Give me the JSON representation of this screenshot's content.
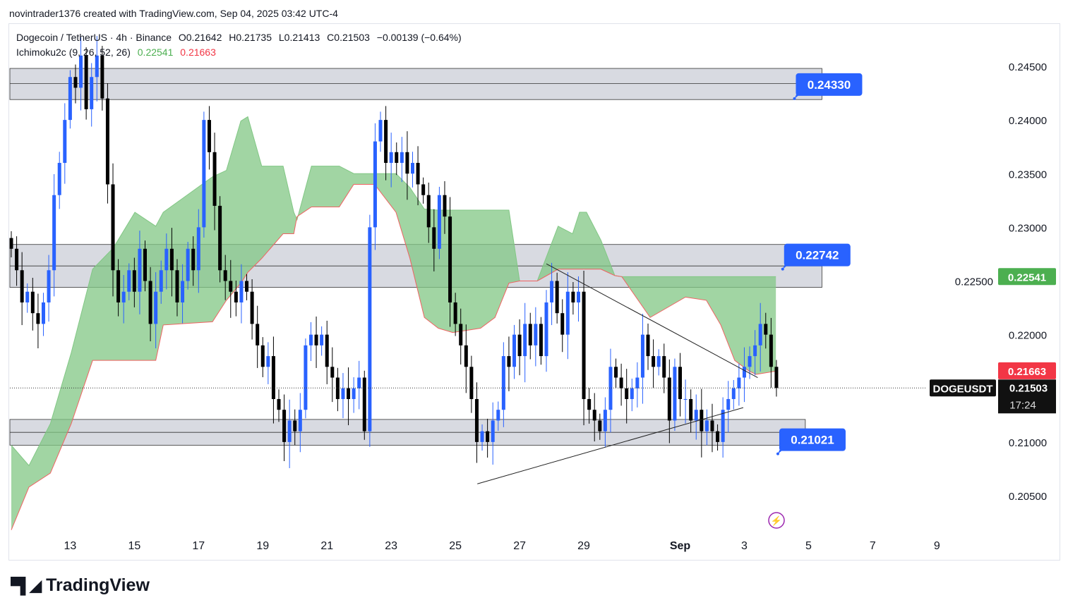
{
  "credit": "novintrader1376 created with TradingView.com, Sep 04, 2025 03:42 UTC-4",
  "legend": {
    "symbol": "Dogecoin / TetherUS · 4h · Binance",
    "open": "O0.21642",
    "high": "H0.21735",
    "low": "L0.21413",
    "close": "C0.21503",
    "change": "−0.00139 (−0.64%)",
    "indicator": "Ichimoku2c (9, 26, 52, 26)",
    "ind_val1": "0.22541",
    "ind_val2": "0.21663"
  },
  "logo": "TradingView",
  "colors": {
    "up": "#2962ff",
    "down": "#000000",
    "cloud": "#81c784",
    "cloud_edge": "#f06262",
    "zone": "#d1d4dc",
    "callout": "#2962ff",
    "green_label": "#4caf50",
    "red_label": "#f23645"
  },
  "chart_data": {
    "type": "candlestick",
    "symbol": "DOGEUSDT",
    "timeframe": "4h",
    "ylim": [
      0.2015,
      0.2488
    ],
    "y_ticks": [
      "0.24500",
      "0.24000",
      "0.23500",
      "0.23000",
      "0.22500",
      "0.22000",
      "0.21000",
      "0.20500"
    ],
    "x_ticks": [
      {
        "label": "13",
        "bar": 11
      },
      {
        "label": "15",
        "bar": 23
      },
      {
        "label": "17",
        "bar": 35
      },
      {
        "label": "19",
        "bar": 47
      },
      {
        "label": "21",
        "bar": 59
      },
      {
        "label": "23",
        "bar": 71
      },
      {
        "label": "25",
        "bar": 83
      },
      {
        "label": "27",
        "bar": 95
      },
      {
        "label": "29",
        "bar": 107
      },
      {
        "label": "Sep",
        "bar": 125
      },
      {
        "label": "3",
        "bar": 137
      },
      {
        "label": "5",
        "bar": 149
      },
      {
        "label": "7",
        "bar": 161
      },
      {
        "label": "9",
        "bar": 173
      }
    ],
    "closes": [
      0.228,
      0.226,
      0.223,
      0.224,
      0.222,
      0.221,
      0.223,
      0.226,
      0.233,
      0.236,
      0.24,
      0.244,
      0.243,
      0.246,
      0.241,
      0.244,
      0.246,
      0.242,
      0.234,
      0.226,
      0.223,
      0.224,
      0.226,
      0.224,
      0.228,
      0.225,
      0.221,
      0.224,
      0.226,
      0.228,
      0.226,
      0.223,
      0.225,
      0.228,
      0.226,
      0.23,
      0.24,
      0.237,
      0.232,
      0.226,
      0.225,
      0.224,
      0.223,
      0.225,
      0.224,
      0.221,
      0.219,
      0.217,
      0.218,
      0.214,
      0.213,
      0.21,
      0.212,
      0.211,
      0.213,
      0.219,
      0.22,
      0.219,
      0.22,
      0.217,
      0.216,
      0.214,
      0.215,
      0.214,
      0.215,
      0.216,
      0.211,
      0.23,
      0.238,
      0.24,
      0.236,
      0.237,
      0.236,
      0.237,
      0.235,
      0.236,
      0.234,
      0.233,
      0.23,
      0.228,
      0.233,
      0.231,
      0.223,
      0.221,
      0.219,
      0.217,
      0.214,
      0.21,
      0.211,
      0.21,
      0.212,
      0.213,
      0.218,
      0.217,
      0.22,
      0.218,
      0.221,
      0.219,
      0.221,
      0.218,
      0.223,
      0.225,
      0.222,
      0.22,
      0.224,
      0.223,
      0.224,
      0.214,
      0.213,
      0.212,
      0.211,
      0.213,
      0.217,
      0.216,
      0.215,
      0.214,
      0.215,
      0.216,
      0.22,
      0.218,
      0.217,
      0.218,
      0.216,
      0.212,
      0.217,
      0.214,
      0.214,
      0.212,
      0.213,
      0.211,
      0.212,
      0.211,
      0.21,
      0.213,
      0.214,
      0.215,
      0.216,
      0.217,
      0.218,
      0.219,
      0.221,
      0.22,
      0.217,
      0.21503
    ],
    "first_open": 0.229,
    "cloud": {
      "bars": [
        0,
        3.3,
        7.3,
        11.2,
        15.2,
        19.1,
        23.1,
        27,
        28.4,
        37.6,
        40.2,
        42.9,
        44.2,
        46.8,
        50.8,
        52.8,
        53.4,
        56.1,
        61.3,
        64,
        67.9,
        71.9,
        74.5,
        77.2,
        79.8,
        82.5,
        87.7,
        90.4,
        93,
        95,
        98.3,
        102.2,
        104.9,
        106.2,
        107.5,
        110.2,
        112.8,
        114.1,
        119.4,
        126,
        129.9,
        132.6,
        135.2,
        137.9,
        139.2,
        142.9
      ],
      "span_a": [
        0.2097,
        0.2078,
        0.2117,
        0.2183,
        0.2261,
        0.2281,
        0.2314,
        0.2301,
        0.2314,
        0.2347,
        0.2353,
        0.2399,
        0.2403,
        0.2357,
        0.2357,
        0.2314,
        0.2307,
        0.2357,
        0.2357,
        0.235,
        0.235,
        0.235,
        0.2337,
        0.2317,
        0.2316,
        0.2316,
        0.2316,
        0.2316,
        0.2316,
        0.225,
        0.225,
        0.2301,
        0.2294,
        0.2314,
        0.2314,
        0.2288,
        0.2255,
        0.2254,
        0.2254,
        0.2254,
        0.2254,
        0.2254,
        0.2254,
        0.2254,
        0.2254,
        0.2254
      ],
      "span_b": [
        0.2018,
        0.2058,
        0.2071,
        0.2117,
        0.2176,
        0.2176,
        0.2176,
        0.2176,
        0.2209,
        0.2212,
        0.2232,
        0.2248,
        0.2258,
        0.2271,
        0.2294,
        0.2294,
        0.231,
        0.2319,
        0.2319,
        0.234,
        0.234,
        0.2314,
        0.2271,
        0.2216,
        0.2206,
        0.2202,
        0.2206,
        0.2216,
        0.2248,
        0.225,
        0.225,
        0.2261,
        0.2261,
        0.2261,
        0.2261,
        0.2261,
        0.2255,
        0.2254,
        0.2216,
        0.2235,
        0.2232,
        0.2209,
        0.2176,
        0.2166,
        0.2163,
        0.2166
      ]
    },
    "zones": [
      {
        "top": 0.2448,
        "bottom": 0.2419,
        "mid": 0.2434,
        "end_bar": 151.5
      },
      {
        "top": 0.2284,
        "bottom": 0.2244,
        "mid": 0.2264,
        "end_bar": 151.5
      },
      {
        "top": 0.2121,
        "bottom": 0.2097,
        "mid": 0.2109,
        "end_bar": 148.4
      }
    ],
    "trendlines": [
      {
        "bar1": 100,
        "p1": 0.2266,
        "bar2": 139.5,
        "p2": 0.216
      },
      {
        "bar1": 87.1,
        "p1": 0.2061,
        "bar2": 136.8,
        "p2": 0.2132
      }
    ],
    "callouts": [
      {
        "label": "0.24330",
        "price": 0.2433,
        "bar": 152.7
      },
      {
        "label": "0.22742",
        "price": 0.22742,
        "bar": 150.5
      },
      {
        "label": "0.21021",
        "price": 0.21021,
        "bar": 149.6
      }
    ],
    "price_labels": [
      {
        "label": "0.22541",
        "price": 0.22541,
        "kind": "green"
      },
      {
        "label": "0.21663",
        "price": 0.21663,
        "kind": "red"
      }
    ],
    "last": {
      "symbol": "DOGEUSDT",
      "price": "0.21503",
      "value": 0.21503,
      "countdown": "17:24"
    }
  }
}
